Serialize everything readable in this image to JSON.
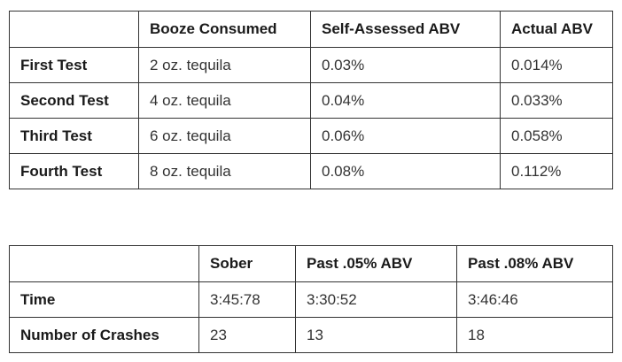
{
  "table1": {
    "headers": [
      "",
      "Booze Consumed",
      "Self-Assessed ABV",
      "Actual ABV"
    ],
    "rows": [
      [
        "First Test",
        "2 oz. tequila",
        "0.03%",
        "0.014%"
      ],
      [
        "Second Test",
        "4 oz. tequila",
        "0.04%",
        "0.033%"
      ],
      [
        "Third Test",
        "6 oz. tequila",
        "0.06%",
        "0.058%"
      ],
      [
        "Fourth Test",
        "8 oz. tequila",
        "0.08%",
        "0.112%"
      ]
    ]
  },
  "table2": {
    "headers": [
      "",
      "Sober",
      "Past .05% ABV",
      "Past .08% ABV"
    ],
    "rows": [
      [
        "Time",
        "3:45:78",
        "3:30:52",
        "3:46:46"
      ],
      [
        "Number of Crashes",
        "23",
        "13",
        "18"
      ]
    ]
  }
}
